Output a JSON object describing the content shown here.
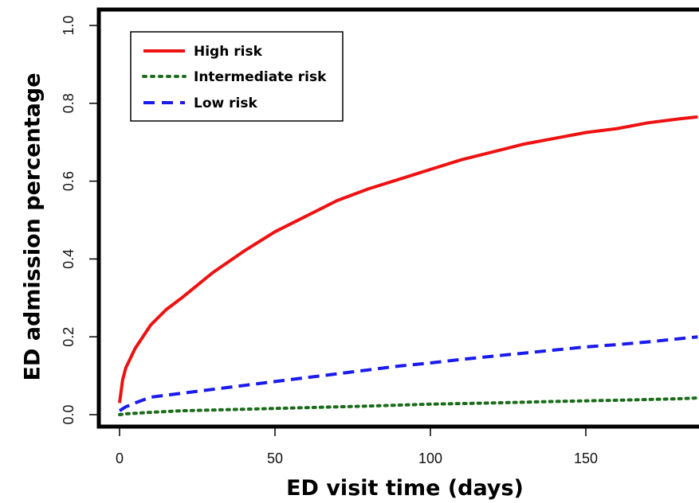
{
  "chart_data": {
    "type": "line",
    "xlabel": "ED visit time (days)",
    "ylabel": "ED admission percentage",
    "xlim": [
      0,
      186
    ],
    "ylim": [
      0.0,
      1.0
    ],
    "xticks": [
      "0",
      "50",
      "100",
      "150"
    ],
    "yticks": [
      "0.0",
      "0.2",
      "0.4",
      "0.6",
      "0.8",
      "1.0"
    ],
    "legend_position": "top-left",
    "grid": false,
    "series": [
      {
        "name": "High risk",
        "color": "#ee1111",
        "style": "solid",
        "x": [
          0,
          1,
          2,
          5,
          10,
          15,
          20,
          30,
          40,
          50,
          60,
          70,
          80,
          90,
          100,
          110,
          120,
          130,
          140,
          150,
          160,
          170,
          180,
          186
        ],
        "y": [
          0.03,
          0.09,
          0.12,
          0.17,
          0.23,
          0.27,
          0.3,
          0.365,
          0.42,
          0.47,
          0.51,
          0.55,
          0.58,
          0.605,
          0.63,
          0.655,
          0.675,
          0.695,
          0.71,
          0.725,
          0.735,
          0.75,
          0.76,
          0.765
        ]
      },
      {
        "name": "Intermediate risk",
        "color": "#1a6b1a",
        "style": "dotted",
        "x": [
          0,
          2,
          10,
          20,
          40,
          60,
          80,
          100,
          120,
          140,
          160,
          180,
          186
        ],
        "y": [
          0.0,
          0.002,
          0.006,
          0.01,
          0.014,
          0.018,
          0.022,
          0.027,
          0.03,
          0.034,
          0.037,
          0.041,
          0.043
        ]
      },
      {
        "name": "Low risk",
        "color": "#1a1aee",
        "style": "dashed",
        "x": [
          0,
          2,
          5,
          10,
          20,
          30,
          40,
          50,
          60,
          70,
          80,
          90,
          100,
          110,
          120,
          130,
          140,
          150,
          160,
          170,
          180,
          186
        ],
        "y": [
          0.01,
          0.02,
          0.03,
          0.045,
          0.055,
          0.065,
          0.075,
          0.085,
          0.095,
          0.105,
          0.115,
          0.125,
          0.133,
          0.142,
          0.15,
          0.158,
          0.166,
          0.174,
          0.18,
          0.187,
          0.195,
          0.2
        ]
      }
    ]
  }
}
